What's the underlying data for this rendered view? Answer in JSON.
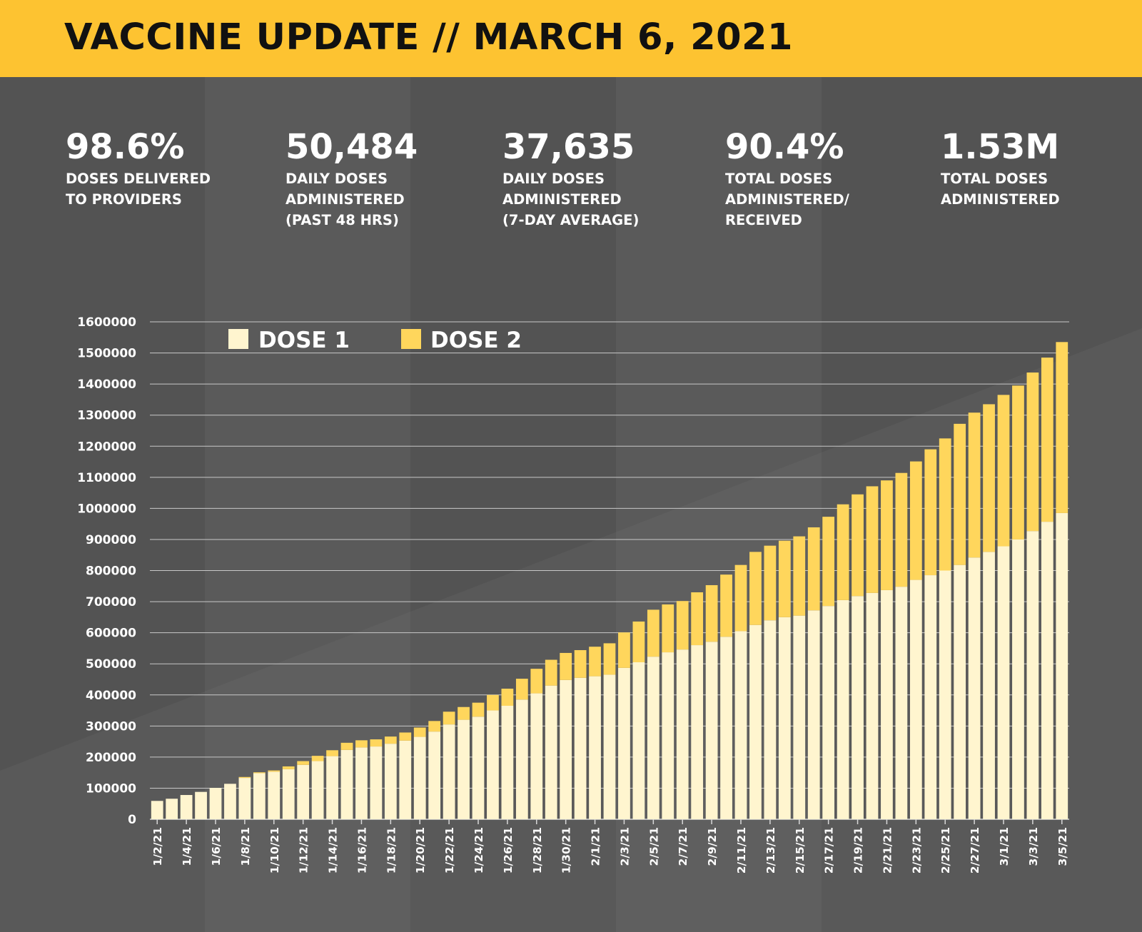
{
  "header": {
    "title": "VACCINE UPDATE // MARCH 6, 2021"
  },
  "colors": {
    "header_bg": "#FDC331",
    "background": "#535353",
    "dose1": "#FFF5CF",
    "dose2": "#FFD65C",
    "text": "#FFFFFF"
  },
  "stats": [
    {
      "value": "98.6%",
      "label_lines": [
        "DOSES DELIVERED",
        "TO PROVIDERS"
      ]
    },
    {
      "value": "50,484",
      "label_lines": [
        "DAILY DOSES",
        "ADMINISTERED",
        "(PAST 48 HRS)"
      ]
    },
    {
      "value": "37,635",
      "label_lines": [
        "DAILY DOSES",
        "ADMINISTERED",
        "(7-DAY AVERAGE)"
      ]
    },
    {
      "value": "90.4%",
      "label_lines": [
        "TOTAL DOSES",
        "ADMINISTERED/",
        "RECEIVED"
      ]
    },
    {
      "value": "1.53M",
      "label_lines": [
        "TOTAL DOSES",
        "ADMINISTERED"
      ]
    }
  ],
  "chart_data": {
    "type": "bar",
    "stacked": true,
    "title": "",
    "xlabel": "",
    "ylabel": "",
    "ylim": [
      0,
      1600000
    ],
    "yticks": [
      0,
      100000,
      200000,
      300000,
      400000,
      500000,
      600000,
      700000,
      800000,
      900000,
      1000000,
      1100000,
      1200000,
      1300000,
      1400000,
      1500000,
      1600000
    ],
    "grid": true,
    "legend_position": "top-left",
    "categories": [
      "1/2/21",
      "1/3/21",
      "1/4/21",
      "1/5/21",
      "1/6/21",
      "1/7/21",
      "1/8/21",
      "1/9/21",
      "1/10/21",
      "1/11/21",
      "1/12/21",
      "1/13/21",
      "1/14/21",
      "1/15/21",
      "1/16/21",
      "1/17/21",
      "1/18/21",
      "1/19/21",
      "1/20/21",
      "1/21/21",
      "1/22/21",
      "1/23/21",
      "1/24/21",
      "1/25/21",
      "1/26/21",
      "1/27/21",
      "1/28/21",
      "1/29/21",
      "1/30/21",
      "1/31/21",
      "2/1/21",
      "2/2/21",
      "2/3/21",
      "2/4/21",
      "2/5/21",
      "2/6/21",
      "2/7/21",
      "2/8/21",
      "2/9/21",
      "2/10/21",
      "2/11/21",
      "2/12/21",
      "2/13/21",
      "2/14/21",
      "2/15/21",
      "2/16/21",
      "2/17/21",
      "2/18/21",
      "2/19/21",
      "2/20/21",
      "2/21/21",
      "2/22/21",
      "2/23/21",
      "2/24/21",
      "2/25/21",
      "2/26/21",
      "2/27/21",
      "2/28/21",
      "3/1/21",
      "3/2/21",
      "3/3/21",
      "3/4/21",
      "3/5/21"
    ],
    "x_tick_labels": [
      "1/2/21",
      "1/4/21",
      "1/6/21",
      "1/8/21",
      "1/10/21",
      "1/12/21",
      "1/14/21",
      "1/16/21",
      "1/18/21",
      "1/20/21",
      "1/22/21",
      "1/24/21",
      "1/26/21",
      "1/28/21",
      "1/30/21",
      "2/1/21",
      "2/3/21",
      "2/5/21",
      "2/7/21",
      "2/9/21",
      "2/11/21",
      "2/13/21",
      "2/15/21",
      "2/17/21",
      "2/19/21",
      "2/21/21",
      "2/23/21",
      "2/25/21",
      "2/27/21",
      "3/1/21",
      "3/3/21",
      "3/5/21"
    ],
    "series": [
      {
        "name": "DOSE 1",
        "values": [
          59000,
          66000,
          78000,
          88000,
          101000,
          114000,
          133000,
          148000,
          153000,
          161000,
          175000,
          187000,
          203000,
          223000,
          231000,
          234000,
          243000,
          253000,
          265000,
          282000,
          305000,
          320000,
          330000,
          350000,
          365000,
          385000,
          405000,
          430000,
          448000,
          455000,
          460000,
          465000,
          487000,
          505000,
          523000,
          537000,
          546000,
          560000,
          571000,
          587000,
          605000,
          625000,
          640000,
          650000,
          655000,
          672000,
          686000,
          705000,
          718000,
          728000,
          737000,
          748000,
          770000,
          785000,
          800000,
          818000,
          842000,
          860000,
          878000,
          900000,
          927000,
          957000,
          985000
        ]
      },
      {
        "name": "DOSE 2",
        "values": [
          0,
          0,
          0,
          0,
          0,
          0,
          3000,
          3000,
          4000,
          9000,
          12000,
          17000,
          19000,
          23000,
          23000,
          23000,
          23000,
          26000,
          30000,
          34000,
          41000,
          41000,
          45000,
          50000,
          55000,
          67000,
          79000,
          83000,
          87000,
          89000,
          95000,
          101000,
          114000,
          131000,
          151000,
          154000,
          156000,
          170000,
          182000,
          200000,
          213000,
          235000,
          240000,
          246000,
          255000,
          267000,
          287000,
          308000,
          327000,
          343000,
          353000,
          366000,
          381000,
          405000,
          425000,
          454000,
          466000,
          475000,
          487000,
          495000,
          510000,
          528000,
          550000
        ]
      }
    ]
  }
}
